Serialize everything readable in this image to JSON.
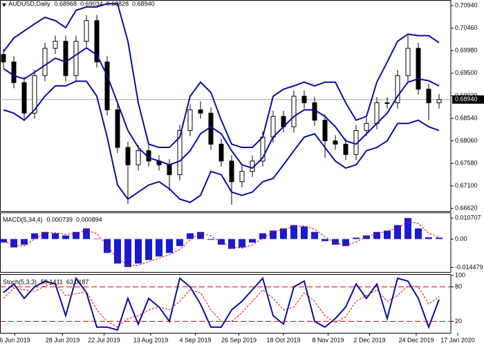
{
  "chart_data": [
    {
      "type": "candlestick",
      "title": "AUDUSD,Daily",
      "quote": [
        {
          "value": 0.68968,
          "label": "0.68968"
        },
        {
          "value": 0.69034,
          "label": "0.69034"
        },
        {
          "value": 0.68828,
          "label": "0.68828"
        },
        {
          "value": 0.6894,
          "label": "0.68940"
        }
      ],
      "last_price": {
        "value": 0.6894,
        "label": "0.68940"
      },
      "ylim": [
        0.6658,
        0.71
      ],
      "yticks": [
        {
          "value": 0.7094,
          "label": "0.70940"
        },
        {
          "value": 0.7046,
          "label": "0.70460"
        },
        {
          "value": 0.6998,
          "label": "0.69980"
        },
        {
          "value": 0.695,
          "label": "0.69500"
        },
        {
          "value": 0.6902,
          "label": "0.69020"
        },
        {
          "value": 0.6854,
          "label": "0.68540"
        },
        {
          "value": 0.6806,
          "label": "0.68060"
        },
        {
          "value": 0.6758,
          "label": "0.67580"
        },
        {
          "value": 0.671,
          "label": "0.67100"
        },
        {
          "value": 0.6662,
          "label": "0.66620"
        }
      ],
      "color": "#000000",
      "open": [
        0.699,
        0.6974,
        0.693,
        0.6865,
        0.6945,
        0.7003,
        0.7018,
        0.6945,
        0.7018,
        0.7062,
        0.6974,
        0.6872,
        0.6792,
        0.6755,
        0.6785,
        0.6763,
        0.6755,
        0.6734,
        0.6828,
        0.6872,
        0.6865,
        0.6799,
        0.6763,
        0.6719,
        0.6741,
        0.6763,
        0.6814,
        0.6858,
        0.6836,
        0.6901,
        0.6887,
        0.685,
        0.6806,
        0.6799,
        0.6777,
        0.6828,
        0.6843,
        0.6887,
        0.6887,
        0.6945,
        0.7003,
        0.6916,
        0.6887
      ],
      "high": [
        0.7002,
        0.6986,
        0.6942,
        0.6957,
        0.7015,
        0.703,
        0.703,
        0.703,
        0.7074,
        0.7074,
        0.6986,
        0.6884,
        0.6804,
        0.6797,
        0.6797,
        0.6775,
        0.6767,
        0.684,
        0.6884,
        0.689,
        0.6877,
        0.6811,
        0.6775,
        0.6753,
        0.6775,
        0.6826,
        0.687,
        0.687,
        0.6913,
        0.6913,
        0.6899,
        0.6862,
        0.6818,
        0.6811,
        0.684,
        0.6855,
        0.6899,
        0.6899,
        0.6957,
        0.703,
        0.7015,
        0.6928,
        0.6906
      ],
      "low": [
        0.6962,
        0.6918,
        0.6853,
        0.6853,
        0.6933,
        0.6991,
        0.6933,
        0.6933,
        0.7006,
        0.6962,
        0.686,
        0.678,
        0.6672,
        0.6743,
        0.6751,
        0.6743,
        0.67,
        0.6722,
        0.6816,
        0.6853,
        0.6787,
        0.6751,
        0.667,
        0.6707,
        0.6729,
        0.6751,
        0.6802,
        0.6824,
        0.6824,
        0.6875,
        0.6838,
        0.677,
        0.6787,
        0.6765,
        0.6765,
        0.6816,
        0.6831,
        0.6875,
        0.6875,
        0.6933,
        0.6904,
        0.685,
        0.6875
      ],
      "close": [
        0.6974,
        0.693,
        0.6865,
        0.6945,
        0.7003,
        0.7018,
        0.6945,
        0.7018,
        0.7062,
        0.6974,
        0.6872,
        0.6792,
        0.6755,
        0.6785,
        0.6763,
        0.6755,
        0.6734,
        0.6828,
        0.6872,
        0.6865,
        0.6799,
        0.6763,
        0.6719,
        0.6741,
        0.6763,
        0.6814,
        0.6858,
        0.6836,
        0.6901,
        0.6887,
        0.685,
        0.6806,
        0.6799,
        0.6777,
        0.6828,
        0.6843,
        0.6887,
        0.6887,
        0.6945,
        0.7003,
        0.6916,
        0.6887,
        0.6894
      ],
      "series": [
        {
          "color": "#0a0aa0",
          "values": [
            0.6996,
            0.7025,
            0.704,
            0.7055,
            0.7069,
            0.7062,
            0.7047,
            0.7084,
            0.7091,
            0.7091,
            0.7098,
            0.7098,
            0.7018,
            0.6887,
            0.6799,
            0.6792,
            0.6792,
            0.6814,
            0.6901,
            0.6931,
            0.6909,
            0.685,
            0.6799,
            0.6792,
            0.6792,
            0.6814,
            0.6901,
            0.6916,
            0.6923,
            0.6931,
            0.6923,
            0.6931,
            0.6931,
            0.6887,
            0.685,
            0.6858,
            0.6931,
            0.6974,
            0.7018,
            0.7033,
            0.703,
            0.703,
            0.7015
          ]
        },
        {
          "color": "#0a0aa0",
          "values": [
            0.696,
            0.6945,
            0.6938,
            0.6952,
            0.6967,
            0.6982,
            0.6974,
            0.6989,
            0.7004,
            0.6989,
            0.6945,
            0.6887,
            0.6828,
            0.6792,
            0.677,
            0.6763,
            0.6755,
            0.6763,
            0.6785,
            0.6821,
            0.6836,
            0.6821,
            0.6785,
            0.6755,
            0.6748,
            0.677,
            0.6814,
            0.6836,
            0.6858,
            0.6872,
            0.6872,
            0.6858,
            0.6836,
            0.6806,
            0.6799,
            0.6821,
            0.6843,
            0.6865,
            0.6901,
            0.6931,
            0.6938,
            0.6934,
            0.6923
          ]
        },
        {
          "color": "#0a0aa0",
          "values": [
            0.6872,
            0.6865,
            0.685,
            0.6872,
            0.6901,
            0.6923,
            0.6923,
            0.6933,
            0.6933,
            0.6901,
            0.6814,
            0.6712,
            0.6682,
            0.6697,
            0.6712,
            0.6719,
            0.6704,
            0.6682,
            0.6675,
            0.669,
            0.6741,
            0.6734,
            0.6697,
            0.669,
            0.6697,
            0.6719,
            0.6726,
            0.6755,
            0.6785,
            0.6814,
            0.6821,
            0.6792,
            0.6763,
            0.6748,
            0.6755,
            0.6785,
            0.6792,
            0.6806,
            0.6843,
            0.6843,
            0.685,
            0.6836,
            0.6828
          ]
        }
      ]
    },
    {
      "type": "macd",
      "title": "MACD(5,34,4)",
      "readout": [
        0.000739,
        0.000894
      ],
      "ylim": [
        -0.0168,
        0.0132
      ],
      "yticks": [
        0.010707,
        {
          "value": 0,
          "label": "0.00"
        },
        -0.014479
      ],
      "series": [
        {
          "color": "#1a1ad0",
          "values": [
            -0.0018,
            -0.0043,
            -0.0029,
            0.0029,
            0.0036,
            0.0029,
            0.0018,
            0.0036,
            0.0054,
            0.0002,
            -0.0071,
            -0.0125,
            -0.0143,
            -0.0125,
            -0.0107,
            -0.0089,
            -0.0071,
            -0.0036,
            0.0029,
            0.0036,
            -0.0004,
            -0.0029,
            -0.005,
            -0.0043,
            -0.0018,
            0.0029,
            0.0043,
            0.0054,
            0.0071,
            0.0064,
            0.0036,
            -0.0011,
            -0.0029,
            -0.0036,
            0.0007,
            0.0018,
            0.0036,
            0.0043,
            0.0071,
            0.0107,
            0.0054,
            0.0009,
            0.000739
          ]
        },
        {
          "color": "#e00000",
          "values": [
            -0.001,
            -0.003,
            -0.0036,
            0.0,
            0.0032,
            0.0032,
            0.0024,
            0.0027,
            0.0045,
            0.0028,
            -0.0035,
            -0.0098,
            -0.0134,
            -0.0134,
            -0.0116,
            -0.0098,
            -0.008,
            -0.0054,
            -0.0004,
            0.0032,
            0.0016,
            -0.0016,
            -0.004,
            -0.0046,
            -0.003,
            0.0005,
            0.0036,
            0.0048,
            0.0062,
            0.0067,
            0.005,
            0.0012,
            -0.002,
            -0.0032,
            -0.0015,
            0.0012,
            0.0027,
            0.004,
            0.0057,
            0.0089,
            0.008,
            0.003,
            0.000894
          ]
        }
      ]
    },
    {
      "type": "stoch",
      "title": "Stoch(5,3,3)",
      "readout": [
        58.1411,
        63.0187
      ],
      "ylim": [
        0,
        100
      ],
      "yticks": [
        100,
        80,
        20
      ],
      "levels": [
        80,
        20
      ],
      "level_color": "#e00000",
      "series": [
        {
          "color": "#0a0aa0",
          "values": [
            70,
            85,
            60,
            80,
            90,
            85,
            30,
            95,
            70,
            10,
            10,
            5,
            60,
            15,
            60,
            45,
            20,
            95,
            80,
            50,
            10,
            10,
            40,
            55,
            75,
            95,
            30,
            15,
            80,
            90,
            20,
            10,
            25,
            45,
            85,
            60,
            85,
            25,
            95,
            90,
            60,
            10,
            58.1411
          ]
        },
        {
          "color": "#e00000",
          "values": [
            60,
            78,
            75,
            72,
            82,
            86,
            65,
            68,
            72,
            40,
            20,
            10,
            25,
            30,
            40,
            45,
            40,
            55,
            75,
            70,
            40,
            20,
            20,
            35,
            55,
            75,
            60,
            40,
            45,
            70,
            55,
            30,
            18,
            28,
            55,
            65,
            75,
            55,
            65,
            82,
            80,
            50,
            63.0187
          ]
        }
      ],
      "xticks": [
        {
          "value": 1.1,
          "label": "6 Jun 2019"
        },
        {
          "value": 5.7,
          "label": "28 Jun 2019"
        },
        {
          "value": 9.7,
          "label": "22 Jul 2019"
        },
        {
          "value": 14.2,
          "label": "13 Aug 2019"
        },
        {
          "value": 18.5,
          "label": "4 Sep 2019"
        },
        {
          "value": 22.7,
          "label": "26 Sep 2019"
        },
        {
          "value": 27,
          "label": "18 Oct 2019"
        },
        {
          "value": 31.3,
          "label": "8 Nov 2019"
        },
        {
          "value": 35.3,
          "label": "2 Dec 2019"
        },
        {
          "value": 39.8,
          "label": "24 Dec 2019"
        },
        {
          "value": 43.8,
          "label": "17 Jan 2020"
        }
      ]
    }
  ]
}
